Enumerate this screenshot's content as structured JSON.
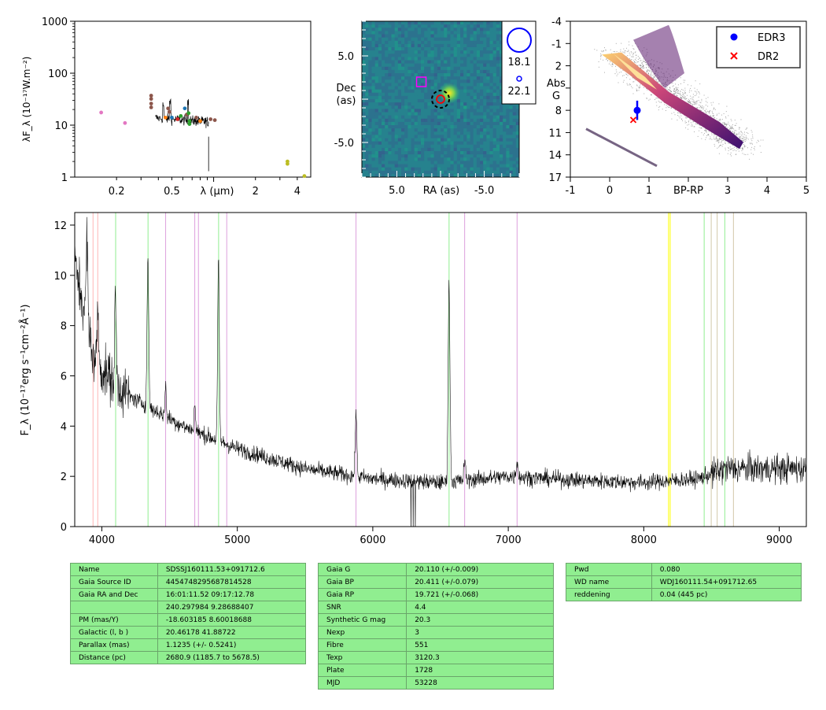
{
  "chart_data": [
    {
      "type": "scatter",
      "panel": "sed",
      "ylabel": "λF_λ (10⁻¹⁷W.m⁻²)",
      "xlabel": "λ (μm)",
      "xscale": "log",
      "yscale": "log",
      "xlim": [
        0.1,
        5
      ],
      "ylim": [
        1,
        1000
      ],
      "xticks": [
        "0.2",
        "0.5",
        "2",
        "4"
      ],
      "yticks": [
        "1",
        "10",
        "100",
        "1000"
      ],
      "points": [
        {
          "x": 0.155,
          "y": 17.5,
          "color": "#e377c2"
        },
        {
          "x": 0.23,
          "y": 11.0,
          "color": "#e377c2"
        },
        {
          "x": 0.355,
          "y": 37,
          "color": "#8c564b"
        },
        {
          "x": 0.355,
          "y": 32,
          "color": "#8c564b"
        },
        {
          "x": 0.355,
          "y": 26,
          "color": "#8c564b"
        },
        {
          "x": 0.355,
          "y": 22,
          "color": "#8c564b"
        },
        {
          "x": 0.47,
          "y": 21,
          "color": "#8c564b"
        },
        {
          "x": 0.48,
          "y": 18,
          "color": "#8c564b"
        },
        {
          "x": 0.45,
          "y": 14,
          "color": "#ff7f0e"
        },
        {
          "x": 0.5,
          "y": 14,
          "color": "#1f77b4"
        },
        {
          "x": 0.55,
          "y": 13,
          "color": "#d62728"
        },
        {
          "x": 0.58,
          "y": 15,
          "color": "#2ca02c"
        },
        {
          "x": 0.62,
          "y": 21,
          "color": "#1f77b4"
        },
        {
          "x": 0.64,
          "y": 16,
          "color": "#8c564b"
        },
        {
          "x": 0.66,
          "y": 17,
          "color": "#2ca02c"
        },
        {
          "x": 0.67,
          "y": 12,
          "color": "#2ca02c"
        },
        {
          "x": 0.67,
          "y": 10.5,
          "color": "#2ca02c"
        },
        {
          "x": 0.75,
          "y": 14,
          "color": "#8c564b"
        },
        {
          "x": 0.8,
          "y": 12,
          "color": "#ff7f0e"
        },
        {
          "x": 0.9,
          "y": 11,
          "color": "#7f7f7f"
        },
        {
          "x": 0.95,
          "y": 13,
          "color": "#8c564b"
        },
        {
          "x": 1.02,
          "y": 12.5,
          "color": "#8c564b"
        },
        {
          "x": 3.4,
          "y": 2.0,
          "color": "#bcbd22"
        },
        {
          "x": 3.4,
          "y": 1.8,
          "color": "#bcbd22"
        },
        {
          "x": 4.5,
          "y": 1.05,
          "color": "#bcbd22"
        }
      ]
    },
    {
      "type": "heatmap",
      "panel": "cutout",
      "xlabel": "RA (as)",
      "ylabel": "Dec (as)",
      "xlim": [
        9,
        -9
      ],
      "ylim": [
        -9,
        9
      ],
      "xticks": [
        "5.0",
        "-5.0"
      ],
      "yticks": [
        "5.0",
        "-5.0"
      ],
      "legend": [
        {
          "symbol": "circle-large",
          "label": "18.1"
        },
        {
          "symbol": "circle-small",
          "label": "22.1"
        }
      ]
    },
    {
      "type": "scatter",
      "panel": "hr",
      "xlabel": "BP-RP",
      "ylabel": "Abs G",
      "xlim": [
        -1,
        5
      ],
      "ylim": [
        17,
        -4
      ],
      "xticks": [
        "-1",
        "0",
        "1",
        "3",
        "4",
        "5"
      ],
      "yticks": [
        "-4",
        "-1",
        "2",
        "5",
        "8",
        "11",
        "14",
        "17"
      ],
      "series": [
        {
          "name": "EDR3",
          "x": 0.7,
          "y": 8.0,
          "yerr": 1.3,
          "color": "#0000ff",
          "marker": "circle"
        },
        {
          "name": "DR2",
          "x": 0.6,
          "y": 9.3,
          "color": "#ff0000",
          "marker": "x"
        }
      ],
      "legend_placement": "top-right"
    },
    {
      "type": "line",
      "panel": "spectrum",
      "ylabel": "F_λ (10⁻¹⁷erg s⁻¹cm⁻²Å⁻¹)",
      "xlim": [
        3800,
        9200
      ],
      "ylim": [
        0,
        12.5
      ],
      "xticks": [
        "4000",
        "5000",
        "6000",
        "7000",
        "8000",
        "9000"
      ],
      "yticks": [
        "0",
        "2",
        "4",
        "6",
        "8",
        "10",
        "12"
      ],
      "continuum": [
        [
          3800,
          10.5
        ],
        [
          3950,
          6.5
        ],
        [
          4200,
          5.2
        ],
        [
          4600,
          4.0
        ],
        [
          5000,
          3.1
        ],
        [
          5500,
          2.3
        ],
        [
          6000,
          1.9
        ],
        [
          6500,
          1.75
        ],
        [
          7000,
          2.0
        ],
        [
          7500,
          1.85
        ],
        [
          8000,
          1.75
        ],
        [
          8400,
          1.9
        ],
        [
          8600,
          2.3
        ],
        [
          9200,
          2.3
        ]
      ],
      "emission_lines": [
        {
          "x": 3890,
          "h": 3.5,
          "w": 14
        },
        {
          "x": 3970,
          "h": 2.5,
          "w": 12
        },
        {
          "x": 4101,
          "h": 3.5,
          "w": 13
        },
        {
          "x": 4340,
          "h": 6.0,
          "w": 14
        },
        {
          "x": 4471,
          "h": 1.2,
          "w": 12
        },
        {
          "x": 4686,
          "h": 1.0,
          "w": 14
        },
        {
          "x": 4861,
          "h": 7.2,
          "w": 14
        },
        {
          "x": 5876,
          "h": 2.6,
          "w": 14
        },
        {
          "x": 6563,
          "h": 7.8,
          "w": 16
        },
        {
          "x": 6678,
          "h": 0.8,
          "w": 14
        },
        {
          "x": 7065,
          "h": 0.6,
          "w": 16
        }
      ],
      "vlines": [
        {
          "x": 3935,
          "color": "#ffb6b6"
        },
        {
          "x": 3970,
          "color": "#ffb6b6"
        },
        {
          "x": 4102,
          "color": "#90ee90"
        },
        {
          "x": 4341,
          "color": "#90ee90"
        },
        {
          "x": 4471,
          "color": "#dda0dd"
        },
        {
          "x": 4686,
          "color": "#dda0dd"
        },
        {
          "x": 4713,
          "color": "#dda0dd"
        },
        {
          "x": 4862,
          "color": "#90ee90"
        },
        {
          "x": 4922,
          "color": "#dda0dd"
        },
        {
          "x": 5876,
          "color": "#dda0dd"
        },
        {
          "x": 6563,
          "color": "#90ee90"
        },
        {
          "x": 6678,
          "color": "#dda0dd"
        },
        {
          "x": 7065,
          "color": "#dda0dd"
        },
        {
          "x": 8183,
          "color": "#ffff00"
        },
        {
          "x": 8195,
          "color": "#ffff00"
        },
        {
          "x": 8446,
          "color": "#90ee90"
        },
        {
          "x": 8498,
          "color": "#d2c8a8"
        },
        {
          "x": 8542,
          "color": "#d2c8a8"
        },
        {
          "x": 8598,
          "color": "#90ee90"
        },
        {
          "x": 8662,
          "color": "#d2c8a8"
        }
      ]
    }
  ],
  "tables": [
    {
      "rows": [
        [
          "Name",
          "SDSSJ160111.53+091712.6"
        ],
        [
          "Gaia Source ID",
          "4454748295687814528"
        ],
        [
          "Gaia RA and Dec",
          "16:01:11.52    09:17:12.78"
        ],
        [
          "",
          "240.297984    9.28688407"
        ],
        [
          "PM (mas/Y)",
          "-18.603185    8.60018688"
        ],
        [
          "Galactic (l, b )",
          "20.46178    41.88722"
        ],
        [
          "Parallax (mas)",
          "1.1235 (+/- 0.5241)"
        ],
        [
          "Distance (pc)",
          "2680.9 (1185.7 to 5678.5)"
        ]
      ]
    },
    {
      "rows": [
        [
          "Gaia G",
          "20.110 (+/-0.009)"
        ],
        [
          "Gaia BP",
          "20.411 (+/-0.079)"
        ],
        [
          "Gaia RP",
          "19.721 (+/-0.068)"
        ],
        [
          "SNR",
          "4.4"
        ],
        [
          "Synthetic G mag",
          "20.3"
        ],
        [
          "Nexp",
          "3"
        ],
        [
          "Fibre",
          "551"
        ],
        [
          "Texp",
          "3120.3"
        ],
        [
          "Plate",
          "1728"
        ],
        [
          "MJD",
          "53228"
        ]
      ]
    },
    {
      "rows": [
        [
          "Pwd",
          "0.080"
        ],
        [
          "WD name",
          "WDJ160111.54+091712.65"
        ],
        [
          "reddening",
          "0.04 (445 pc)"
        ]
      ]
    }
  ]
}
